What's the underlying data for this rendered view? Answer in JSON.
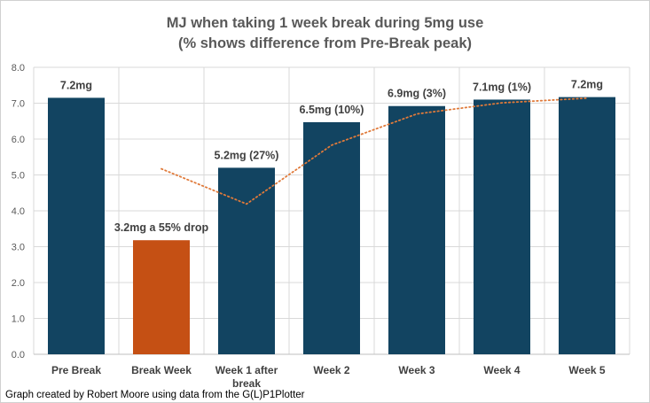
{
  "chart_data": {
    "type": "bar",
    "title_lines": [
      "MJ when taking 1 week break during 5mg use",
      "(% shows difference from Pre-Break peak)"
    ],
    "categories": [
      "Pre Break",
      "Break Week",
      "Week 1 after break",
      "Week 2",
      "Week 3",
      "Week 4",
      "Week 5"
    ],
    "values": [
      7.15,
      3.18,
      5.2,
      6.47,
      6.92,
      7.1,
      7.17
    ],
    "data_labels": [
      "7.2mg",
      "3.2mg a 55% drop",
      "5.2mg (27%)",
      "6.5mg (10%)",
      "6.9mg (3%)",
      "7.1mg (1%)",
      "7.2mg"
    ],
    "bar_colors": [
      "#124461",
      "#c55014",
      "#124461",
      "#124461",
      "#124461",
      "#124461",
      "#124461"
    ],
    "trendline": {
      "type": "moving-average",
      "color": "#e07a3a",
      "values": [
        null,
        5.17,
        4.19,
        5.83,
        6.7,
        7.01,
        7.14
      ]
    },
    "y_ticks": [
      "0.0",
      "1.0",
      "2.0",
      "3.0",
      "4.0",
      "5.0",
      "6.0",
      "7.0",
      "8.0"
    ],
    "ylim": [
      0,
      8
    ],
    "xlabel": "",
    "ylabel": "",
    "grid": true,
    "legend": "none"
  },
  "footnote": "Graph created by Robert Moore using data from the G(L)P1Plotter"
}
